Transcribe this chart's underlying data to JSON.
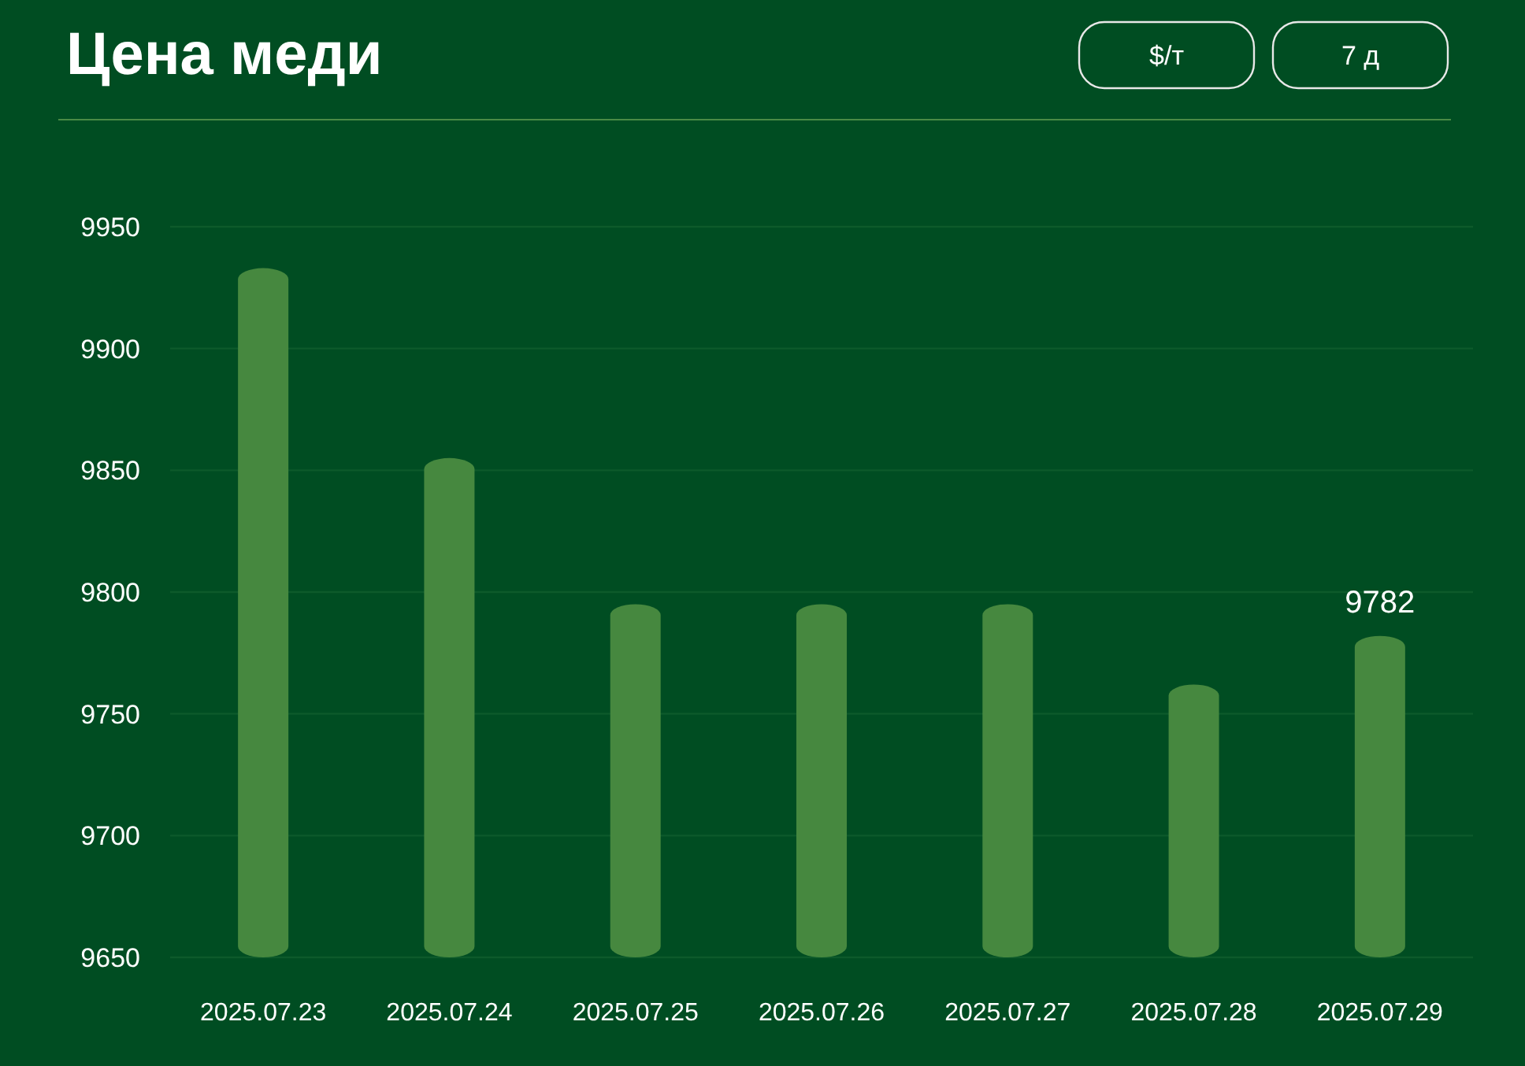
{
  "chart_data": {
    "type": "bar",
    "title": "Цена меди",
    "categories": [
      "2025.07.23",
      "2025.07.24",
      "2025.07.25",
      "2025.07.26",
      "2025.07.27",
      "2025.07.28",
      "2025.07.29"
    ],
    "values": [
      9933,
      9855,
      9795,
      9795,
      9795,
      9762,
      9782
    ],
    "value_labels": [
      null,
      null,
      null,
      null,
      null,
      null,
      "9782"
    ],
    "color": "#46883f",
    "ylim": [
      9650,
      9950
    ],
    "yticks": [
      9650,
      9700,
      9750,
      9800,
      9850,
      9900,
      9950
    ],
    "grid": "y",
    "annotations": [
      "$/т",
      "7 д"
    ]
  }
}
